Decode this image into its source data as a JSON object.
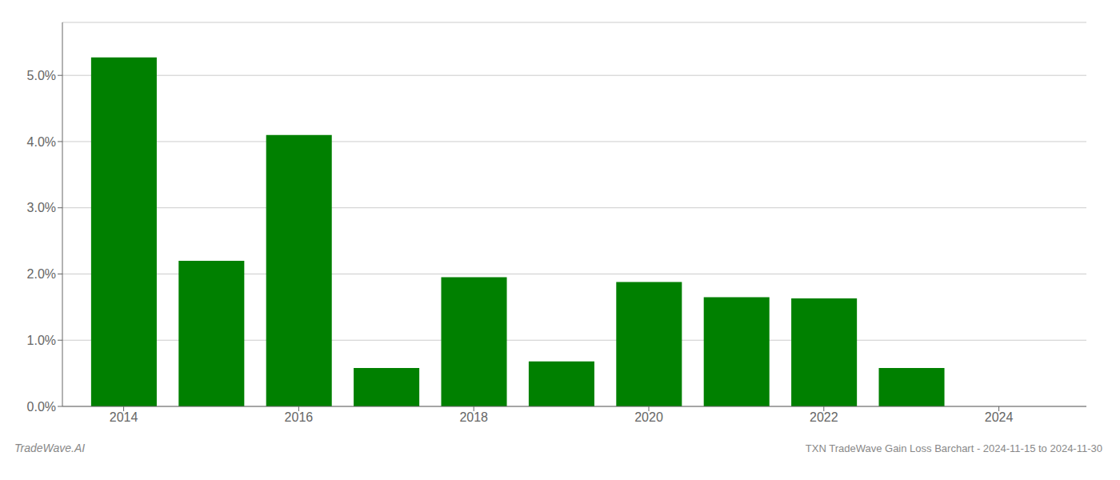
{
  "chart_data": {
    "type": "bar",
    "title": "TXN TradeWave Gain Loss Barchart - 2024-11-15 to 2024-11-30",
    "annotations": [
      "TradeWave.AI"
    ],
    "x": [
      2014,
      2015,
      2016,
      2017,
      2018,
      2019,
      2020,
      2021,
      2022,
      2023
    ],
    "values": [
      0.0527,
      0.022,
      0.041,
      0.0058,
      0.0195,
      0.0068,
      0.0188,
      0.0165,
      0.0163,
      0.0058
    ],
    "color": "#008000",
    "xlim": [
      2013.3,
      2025.0
    ],
    "xticks": [
      2014,
      2016,
      2018,
      2020,
      2022,
      2024
    ],
    "ylim": [
      0,
      0.058
    ],
    "yticks": [
      {
        "value": 0.0,
        "label": "0.0%"
      },
      {
        "value": 0.01,
        "label": "1.0%"
      },
      {
        "value": 0.02,
        "label": "2.0%"
      },
      {
        "value": 0.03,
        "label": "3.0%"
      },
      {
        "value": 0.04,
        "label": "4.0%"
      },
      {
        "value": 0.05,
        "label": "5.0%"
      }
    ],
    "grid": true
  }
}
